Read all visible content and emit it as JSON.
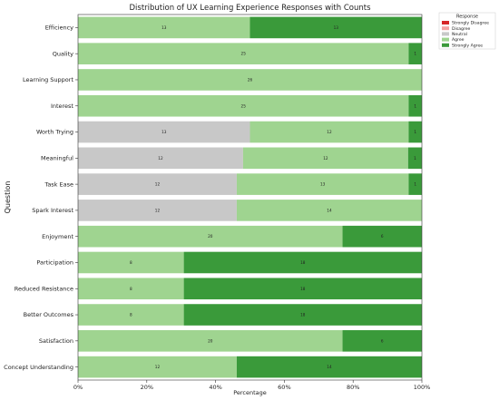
{
  "chart_data": {
    "type": "bar",
    "orientation": "horizontal",
    "stacked": true,
    "title": "Distribution of UX Learning Experience Responses with Counts",
    "xlabel": "Percentage",
    "ylabel": "Question",
    "xlim": [
      0,
      100
    ],
    "x_tick_labels": [
      "0%",
      "20%",
      "40%",
      "60%",
      "80%",
      "100%"
    ],
    "grid": false,
    "legend": {
      "title": "Response",
      "position": "top-right"
    },
    "categories": [
      "Efficiency",
      "Quality",
      "Learning Support",
      "Interest",
      "Worth Trying",
      "Meaningful",
      "Task Ease",
      "Spark Interest",
      "Enjoyment",
      "Participation",
      "Reduced Resistance",
      "Better Outcomes",
      "Satisfaction",
      "Concept Understanding"
    ],
    "series": [
      {
        "name": "Strongly Disagree",
        "color": "#d62728",
        "values": [
          0,
          0,
          0,
          0,
          0,
          0,
          0,
          0,
          0,
          0,
          0,
          0,
          0,
          0
        ]
      },
      {
        "name": "Disagree",
        "color": "#f4a3a3",
        "values": [
          0,
          0,
          0,
          0,
          0,
          0,
          0,
          0,
          0,
          0,
          0,
          0,
          0,
          0
        ]
      },
      {
        "name": "Neutral",
        "color": "#c8c8c8",
        "values": [
          0,
          0,
          0,
          0,
          13,
          12,
          12,
          12,
          0,
          0,
          0,
          0,
          0,
          0
        ]
      },
      {
        "name": "Agree",
        "color": "#9fd490",
        "values": [
          13,
          25,
          26,
          25,
          12,
          12,
          13,
          14,
          20,
          8,
          8,
          8,
          20,
          12
        ]
      },
      {
        "name": "Strongly Agree",
        "color": "#3a9a3a",
        "values": [
          13,
          1,
          0,
          1,
          1,
          1,
          1,
          0,
          6,
          18,
          18,
          18,
          6,
          14
        ]
      }
    ]
  }
}
